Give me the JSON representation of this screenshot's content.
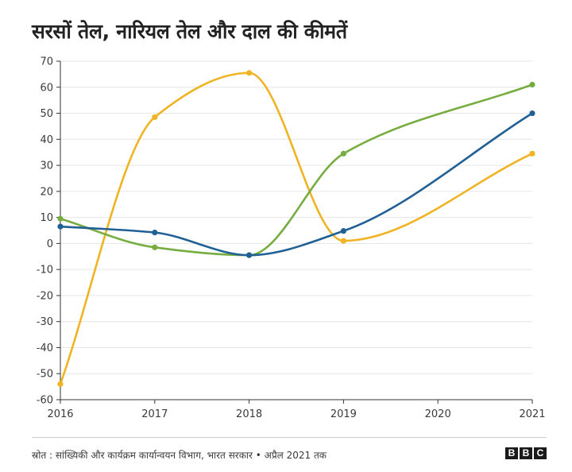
{
  "title": "सरसों तेल, नारियल तेल और दाल की कीमतें",
  "source": "स्रोत : सांख्यिकी और कार्यक्रम कार्यान्वयन विभाग, भारत सरकार • अप्रैल 2021 तक",
  "logo": {
    "letters": [
      "B",
      "B",
      "C"
    ]
  },
  "chart_data": {
    "type": "line",
    "title": "सरसों तेल, नारियल तेल और दाल की कीमतें",
    "xlabel": "",
    "ylabel": "",
    "x": [
      2016,
      2017,
      2018,
      2019,
      2020,
      2021
    ],
    "xticks": [
      2016,
      2017,
      2018,
      2019,
      2020,
      2021
    ],
    "ylim": [
      -60,
      70
    ],
    "yticks": [
      70,
      60,
      50,
      40,
      30,
      20,
      10,
      0,
      -10,
      -20,
      -30,
      -40,
      -50,
      -60
    ],
    "grid": true,
    "legend": "none",
    "curve": "smooth",
    "series": [
      {
        "color": "#f0b323",
        "points": [
          [
            2016,
            -54
          ],
          [
            2017,
            48.5
          ],
          [
            2018,
            65.5
          ],
          [
            2019,
            1
          ],
          [
            2021,
            34.5
          ]
        ]
      },
      {
        "color": "#77ac41",
        "points": [
          [
            2016,
            9.5
          ],
          [
            2017,
            -1.5
          ],
          [
            2018,
            -4.5
          ],
          [
            2019,
            34.5
          ],
          [
            2021,
            61
          ]
        ]
      },
      {
        "color": "#206095",
        "points": [
          [
            2016,
            6.5
          ],
          [
            2017,
            4.2
          ],
          [
            2018,
            -4.5
          ],
          [
            2019,
            4.8
          ],
          [
            2021,
            50
          ]
        ]
      }
    ]
  }
}
